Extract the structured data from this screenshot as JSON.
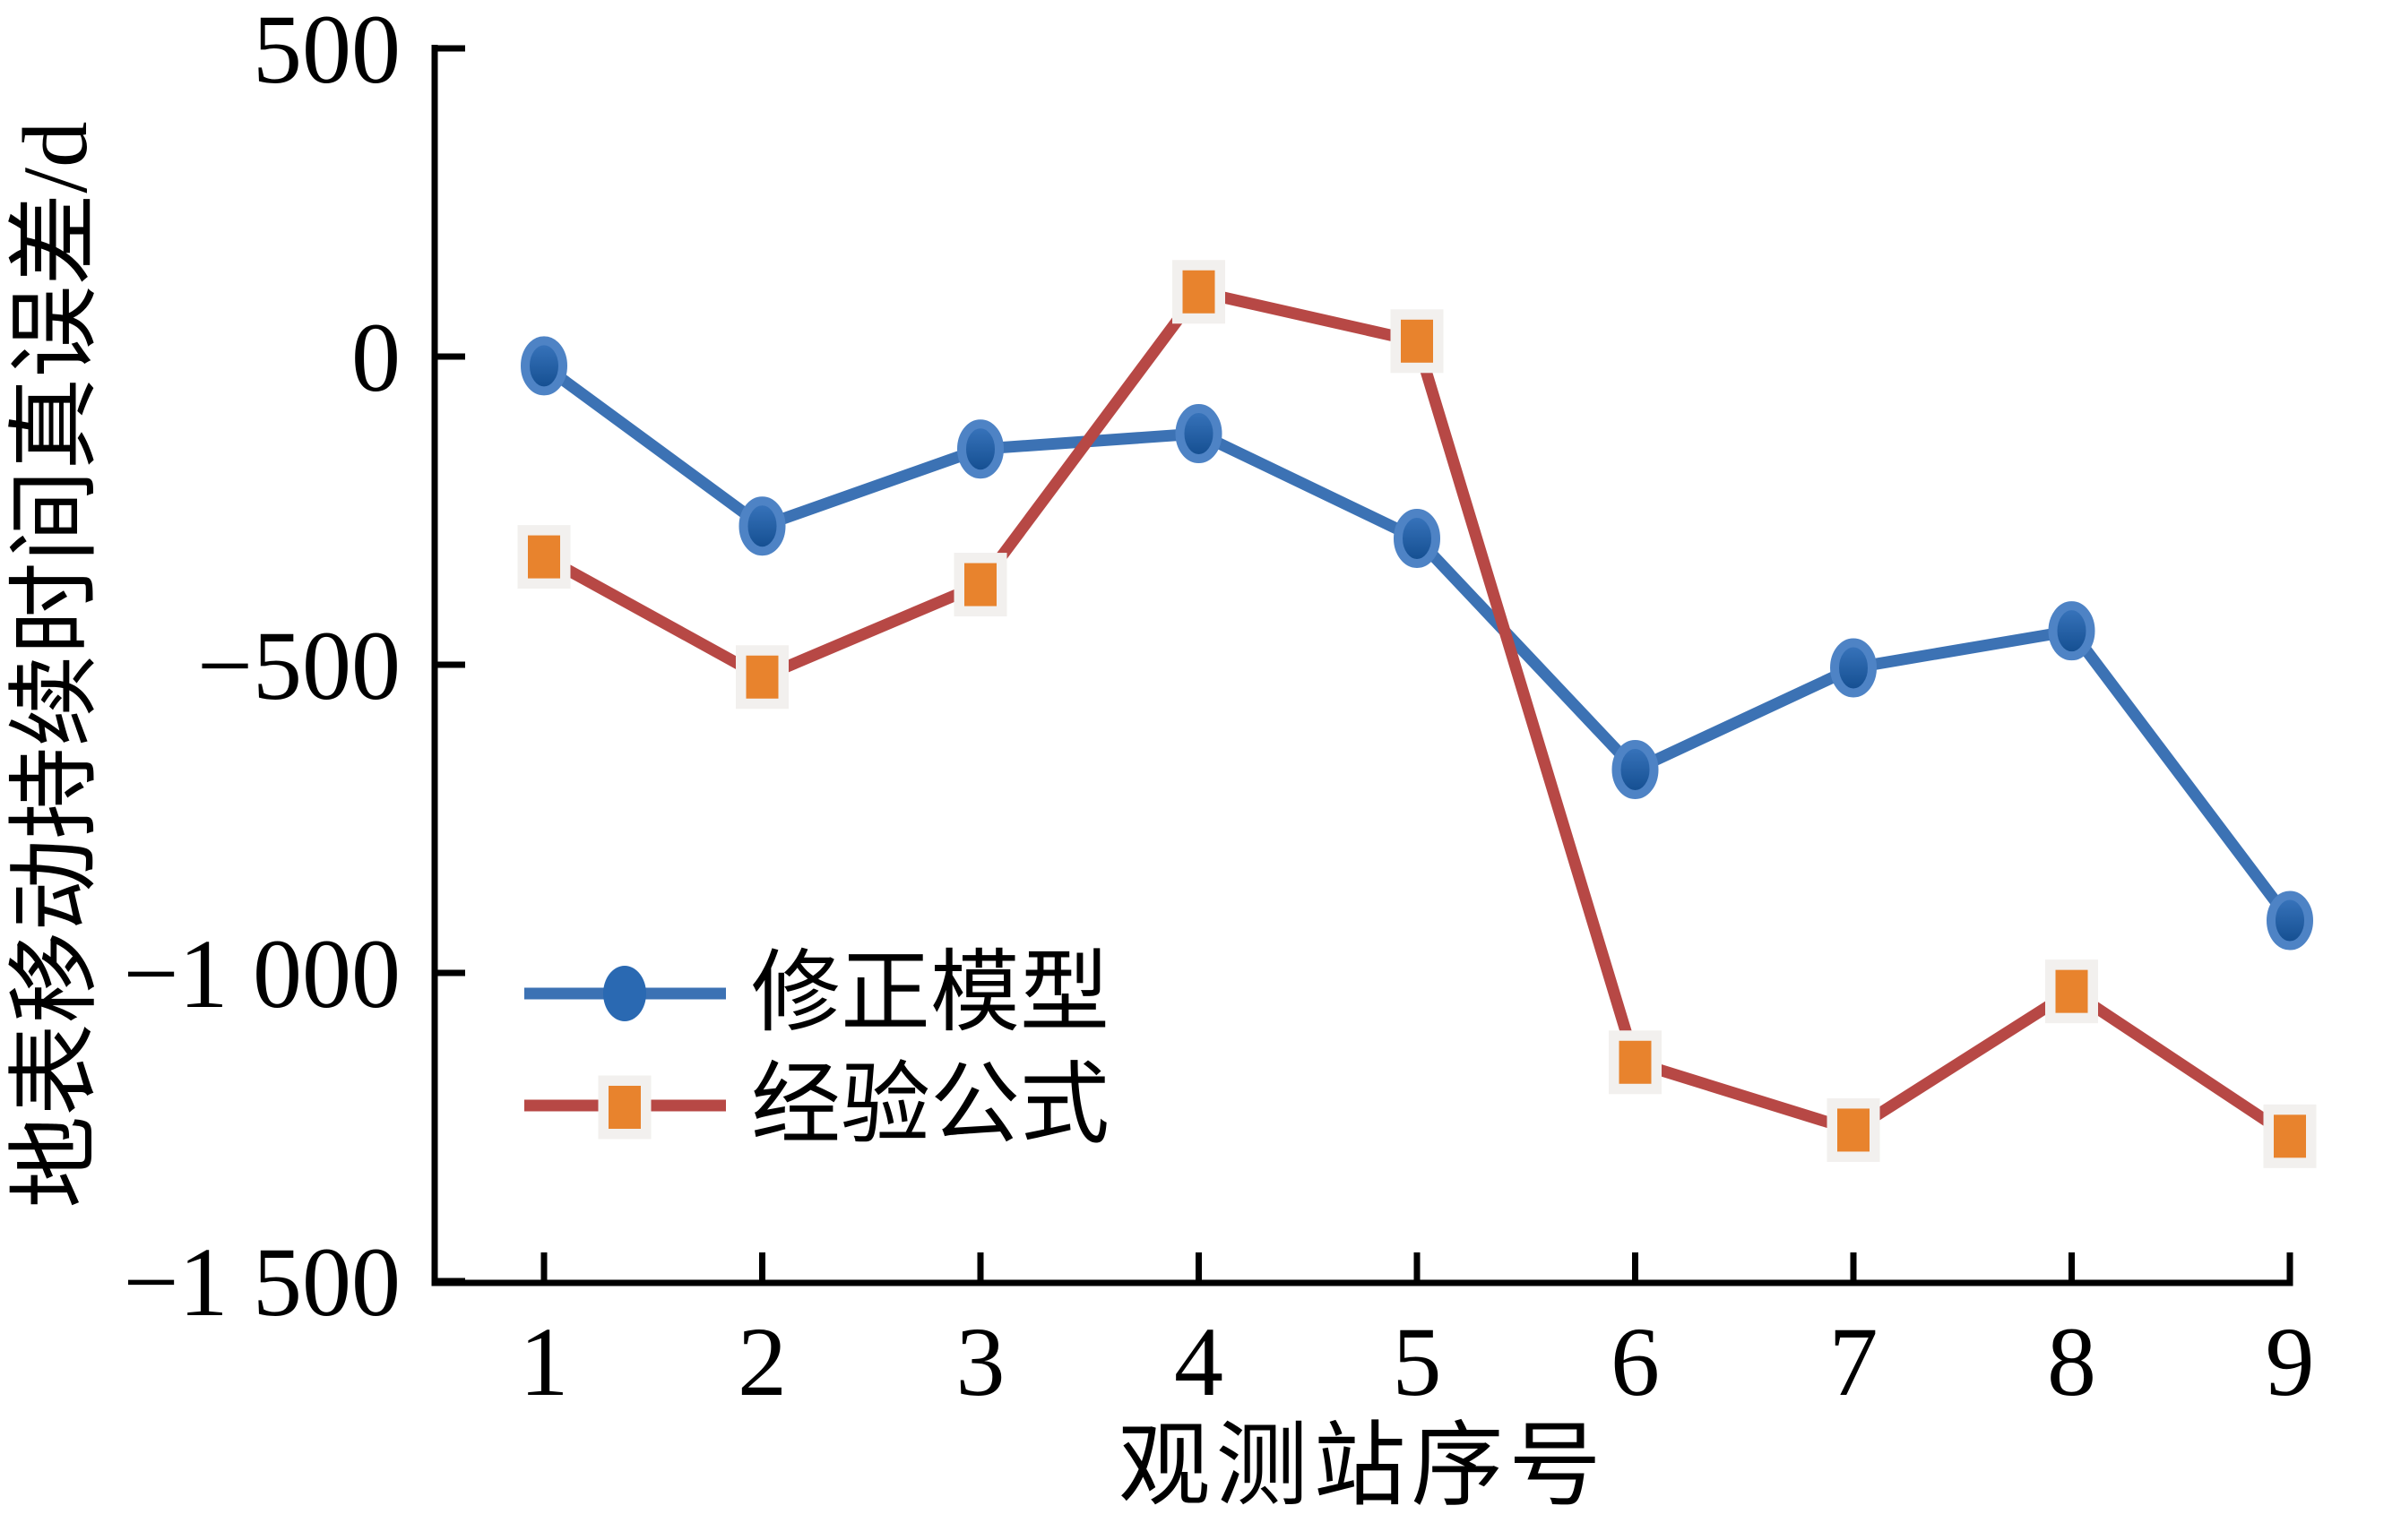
{
  "figure": {
    "background": "#ffffff",
    "axis_color": "#000000"
  },
  "chart_data": {
    "type": "line",
    "title": "",
    "xlabel": "观测站序号",
    "ylabel": "地表移动持续时间真误差/d",
    "x": [
      1,
      2,
      3,
      4,
      5,
      6,
      7,
      8,
      9
    ],
    "xtick_labels": [
      "1",
      "2",
      "3",
      "4",
      "5",
      "6",
      "7",
      "8",
      "9"
    ],
    "ytick_values": [
      500,
      0,
      -500,
      -1000,
      -1500
    ],
    "ytick_labels": [
      "500",
      "0",
      "−500",
      "−1 000",
      "−1 500"
    ],
    "ylim": [
      -1500,
      500
    ],
    "xlim": [
      0.5,
      9
    ],
    "grid": false,
    "legend_position": "inside-lower-left",
    "series": [
      {
        "name": "修正模型",
        "marker": "ellipse",
        "line_color": "#3C72B4",
        "marker_fill_top": "#3A76BE",
        "marker_fill_bottom": "#124C8E",
        "marker_ring": "#4E83C5",
        "values": [
          -15,
          -275,
          -150,
          -125,
          -295,
          -670,
          -505,
          -445,
          -915
        ]
      },
      {
        "name": "经验公式",
        "marker": "square",
        "line_color": "#B74845",
        "marker_fill": "#E8832D",
        "marker_halo": "#F2F0EE",
        "values": [
          -325,
          -520,
          -370,
          105,
          25,
          -1145,
          -1255,
          -1030,
          -1265
        ]
      }
    ]
  }
}
